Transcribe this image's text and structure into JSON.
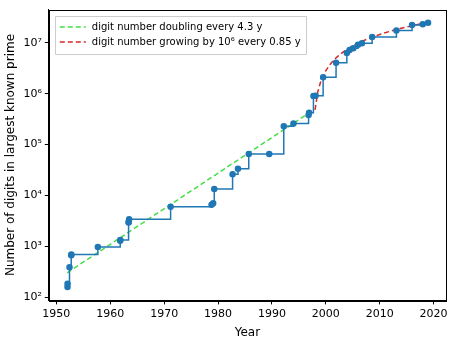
{
  "chart_data": {
    "type": "line",
    "x_label": "Year",
    "y_label": "Number of digits in largest known prime",
    "log": "y",
    "grid": false,
    "legend": "upper left",
    "xlim": [
      1948.6,
      2022.3
    ],
    "xticks": [
      1950,
      1960,
      1970,
      1980,
      1990,
      2000,
      2010,
      2020
    ],
    "ylim": [
      86,
      45000000
    ],
    "yticks": [
      {
        "value": 100,
        "label": "10²"
      },
      {
        "value": 1000,
        "label": "10³"
      },
      {
        "value": 10000,
        "label": "10⁴"
      },
      {
        "value": 100000,
        "label": "10⁵"
      },
      {
        "value": 1000000,
        "label": "10⁶"
      },
      {
        "value": 10000000,
        "label": "10⁷"
      }
    ],
    "series": [
      {
        "color": "#1f77b4",
        "marker": "circle",
        "line_style": "steps-post",
        "x": [
          1952.07,
          1952.08,
          1952.44,
          1952.76,
          1952.78,
          1957.7,
          1961.85,
          1961.87,
          1963.4,
          1963.42,
          1963.5,
          1971.2,
          1978.8,
          1979.1,
          1979.3,
          1982.7,
          1983.7,
          1985.7,
          1989.5,
          1992.2,
          1994.0,
          1996.8,
          1996.9,
          1997.7,
          1998.1,
          1999.5,
          2001.9,
          2003.9,
          2004.4,
          2005.1,
          2005.97,
          2006.7,
          2008.6,
          2013.1,
          2016.0,
          2017.98,
          2018.97
        ],
        "values": [
          157,
          183,
          386,
          664,
          687,
          969,
          1281,
          1332,
          2917,
          2993,
          3376,
          6002,
          6533,
          6987,
          13395,
          25962,
          33265,
          65050,
          65087,
          227832,
          258716,
          378632,
          420921,
          895932,
          909526,
          2098960,
          4053946,
          6320430,
          7235733,
          7816230,
          9152052,
          9808358,
          12978189,
          17425170,
          22338618,
          23249425,
          24862048
        ]
      },
      {
        "name": "digit number doubling every 4.3 y",
        "color": "#44dd44",
        "marker": "none",
        "line_style": "dashed",
        "x": [
          1952,
          1997
        ],
        "values": [
          300,
          424000
        ]
      },
      {
        "name": "digit number growing by 10⁶ every 0.85 y",
        "color": "#d62728",
        "marker": "none",
        "line_style": "dashed",
        "x": [
          1998,
          1998.5,
          1999,
          2000,
          2001,
          2002,
          2003,
          2004,
          2005,
          2006,
          2007,
          2008,
          2010,
          2012,
          2014,
          2016,
          2018
        ],
        "values": [
          480000,
          1070000,
          1660000,
          2840000,
          4010000,
          5190000,
          6360000,
          7540000,
          8720000,
          9890000,
          11070000,
          12250000,
          14600000,
          16950000,
          19300000,
          21660000,
          24010000
        ]
      }
    ]
  }
}
